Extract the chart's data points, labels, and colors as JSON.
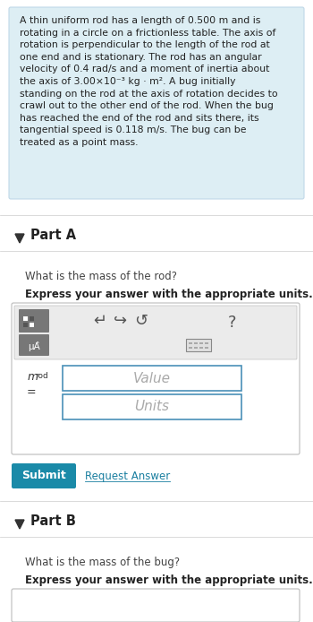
{
  "bg_color": "#ffffff",
  "info_box_color": "#ddeef4",
  "info_box_border": "#c0d8e8",
  "part_a_label": "Part A",
  "part_a_question": "What is the mass of the rod?",
  "part_a_bold": "Express your answer with the appropriate units.",
  "value_placeholder": "Value",
  "units_placeholder": "Units",
  "submit_text": "Submit",
  "request_answer_text": "Request Answer",
  "submit_bg": "#1a8aa8",
  "submit_text_color": "#ffffff",
  "request_answer_color": "#1a7fa0",
  "part_b_label": "Part B",
  "part_b_question": "What is the mass of the bug?",
  "part_b_bold": "Express your answer with the appropriate units.",
  "input_border": "#4a90b8",
  "input_bg": "#ffffff",
  "separator_color": "#cccccc"
}
